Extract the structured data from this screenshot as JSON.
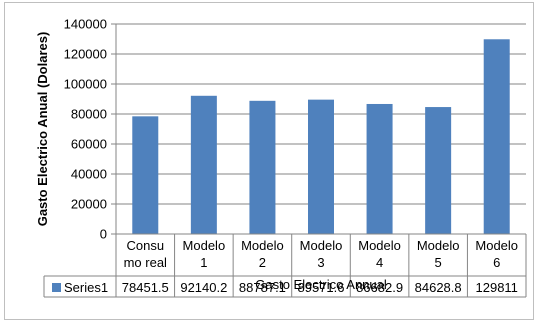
{
  "chart_data": {
    "type": "bar",
    "title": "",
    "xlabel": "Gasto Electrico Annual",
    "ylabel": "Gasto Electrico Anual (Dolares)",
    "ylim": [
      0,
      140000
    ],
    "yticks": [
      "0",
      "20000",
      "40000",
      "60000",
      "80000",
      "100000",
      "120000",
      "140000"
    ],
    "categories": [
      [
        "Consu",
        "mo real"
      ],
      [
        "Modelo",
        "1"
      ],
      [
        "Modelo",
        "2"
      ],
      [
        "Modelo",
        "3"
      ],
      [
        "Modelo",
        "4"
      ],
      [
        "Modelo",
        "5"
      ],
      [
        "Modelo",
        "6"
      ]
    ],
    "series": [
      {
        "name": "Series1",
        "values": [
          78451.5,
          92140.2,
          88787.1,
          89571.6,
          86682.9,
          84628.8,
          129811
        ],
        "labels": [
          "78451.5",
          "92140.2",
          "88787.1",
          "89571.6",
          "86682.9",
          "84628.8",
          "129811"
        ],
        "color": "#4f81bd"
      }
    ],
    "grid": true,
    "legend": "data-table"
  }
}
